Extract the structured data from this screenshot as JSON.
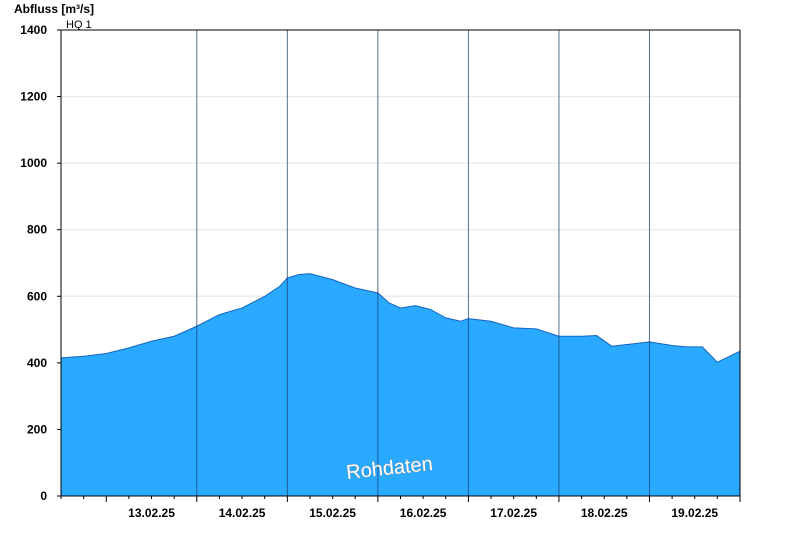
{
  "chart_data": {
    "type": "area",
    "ylabel": "Abfluss [m³/s]",
    "ylim": [
      0,
      1400
    ],
    "yticks": [
      0,
      200,
      400,
      600,
      800,
      1000,
      1200,
      1400
    ],
    "xlim": [
      "12.02.25 12:00",
      "19.02.25 24:00"
    ],
    "day_separators": [
      "13.02.25 24:00",
      "14.02.25 24:00",
      "15.02.25 24:00",
      "16.02.25 24:00",
      "17.02.25 24:00",
      "18.02.25 24:00"
    ],
    "xtick_labels": [
      "13.02.25",
      "14.02.25",
      "15.02.25",
      "16.02.25",
      "17.02.25",
      "18.02.25",
      "19.02.25"
    ],
    "threshold": {
      "label": "HQ 1",
      "value": 1400
    },
    "watermark": "Rohdaten",
    "grid": "horizontal",
    "colors": {
      "fill": "#29a9ff",
      "line": "#1565c0",
      "separator": "#1a3d6e"
    },
    "series": [
      {
        "x": [
          "12.02.25 12:00",
          "12.02.25 18:00",
          "13.02.25 00:00",
          "13.02.25 06:00",
          "13.02.25 12:00",
          "13.02.25 18:00",
          "14.02.25 00:00",
          "14.02.25 06:00",
          "14.02.25 12:00",
          "14.02.25 18:00",
          "14.02.25 22:00",
          "15.02.25 00:00",
          "15.02.25 03:00",
          "15.02.25 06:00",
          "15.02.25 12:00",
          "15.02.25 18:00",
          "16.02.25 00:00",
          "16.02.25 03:00",
          "16.02.25 06:00",
          "16.02.25 10:00",
          "16.02.25 14:00",
          "16.02.25 18:00",
          "16.02.25 22:00",
          "17.02.25 00:00",
          "17.02.25 06:00",
          "17.02.25 12:00",
          "17.02.25 18:00",
          "18.02.25 00:00",
          "18.02.25 06:00",
          "18.02.25 10:00",
          "18.02.25 14:00",
          "18.02.25 18:00",
          "19.02.25 00:00",
          "19.02.25 06:00",
          "19.02.25 10:00",
          "19.02.25 14:00",
          "19.02.25 18:00",
          "19.02.25 24:00"
        ],
        "values": [
          415,
          420,
          428,
          445,
          465,
          480,
          510,
          545,
          565,
          600,
          630,
          655,
          665,
          668,
          650,
          625,
          610,
          580,
          565,
          572,
          560,
          535,
          525,
          533,
          525,
          505,
          502,
          480,
          480,
          482,
          450,
          455,
          463,
          452,
          448,
          448,
          402,
          435
        ]
      }
    ]
  }
}
